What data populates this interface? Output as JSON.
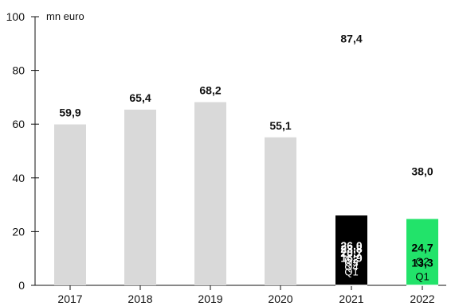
{
  "chart_data": {
    "type": "bar",
    "title": "",
    "unit_label": "mn euro",
    "xlabel": "",
    "ylabel": "",
    "ylim": [
      0,
      100
    ],
    "y_ticks": [
      0,
      20,
      40,
      60,
      80,
      100
    ],
    "categories": [
      "2017",
      "2018",
      "2019",
      "2020",
      "2021",
      "2022"
    ],
    "bars": [
      {
        "year": "2017",
        "total": 59.9,
        "total_label": "59,9",
        "color": "#d9d9d9",
        "segments": []
      },
      {
        "year": "2018",
        "total": 65.4,
        "total_label": "65,4",
        "color": "#d9d9d9",
        "segments": []
      },
      {
        "year": "2019",
        "total": 68.2,
        "total_label": "68,2",
        "color": "#d9d9d9",
        "segments": []
      },
      {
        "year": "2020",
        "total": 55.1,
        "total_label": "55,1",
        "color": "#d9d9d9",
        "segments": []
      },
      {
        "year": "2021",
        "total": 87.4,
        "total_label": "87,4",
        "color": "#000000",
        "segments": [
          {
            "quarter": "Q1",
            "value": 16.9,
            "label": "16,9"
          },
          {
            "quarter": "Q2",
            "value": 26.0,
            "label": "26,0"
          },
          {
            "quarter": "Q3",
            "value": 23.8,
            "label": "23,8"
          },
          {
            "quarter": "Q4",
            "value": 20.7,
            "label": "20,7"
          }
        ]
      },
      {
        "year": "2022",
        "total": 38.0,
        "total_label": "38,0",
        "color": "#22e36a",
        "segments": [
          {
            "quarter": "Q1",
            "value": 13.3,
            "label": "13,3"
          },
          {
            "quarter": "Q2",
            "value": 24.7,
            "label": "24,7"
          }
        ]
      }
    ],
    "colors": {
      "past_year": "#d9d9d9",
      "year_2021": "#000000",
      "year_2022": "#22e36a",
      "axis": "#111111",
      "segment_divider": "#ffffff"
    },
    "grid": false,
    "legend": "none"
  }
}
